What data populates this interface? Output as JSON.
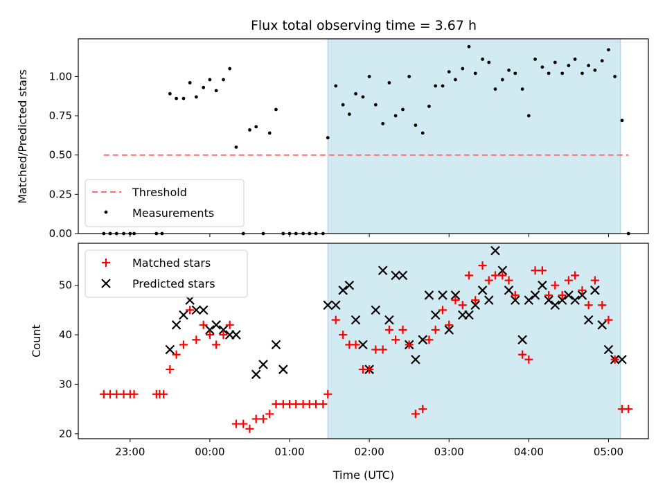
{
  "chart_data": [
    {
      "type": "scatter",
      "panel": "top",
      "title": "Flux total observing time = 3.67 h",
      "xlabel": "",
      "ylabel": "Matched/Predicted stars",
      "xlim": [
        22.35,
        5.5
      ],
      "ylim": [
        0,
        1.24
      ],
      "yticks": [
        0.0,
        0.25,
        0.5,
        0.75,
        1.0
      ],
      "ytick_labels": [
        "0.00",
        "0.25",
        "0.50",
        "0.75",
        "1.00"
      ],
      "shaded_region": [
        1.48,
        5.15
      ],
      "shade_color": "#add8e6",
      "threshold": {
        "label": "Threshold",
        "y": 0.5,
        "x_from": 22.67,
        "x_to": 5.25,
        "color": "#ff6b6b"
      },
      "legend": [
        "Threshold",
        "Measurements"
      ],
      "legend_position": "lower-left",
      "series": [
        {
          "name": "Measurements",
          "color": "#000000",
          "x": [
            22.67,
            22.75,
            22.83,
            22.92,
            23.0,
            23.05,
            23.33,
            23.4,
            23.5,
            23.58,
            23.67,
            23.75,
            23.83,
            23.92,
            24.0,
            24.08,
            24.17,
            24.25,
            24.33,
            24.42,
            24.5,
            24.58,
            24.67,
            24.75,
            24.83,
            24.92,
            25.0,
            25.08,
            25.17,
            25.25,
            25.33,
            25.42,
            25.48,
            25.58,
            25.67,
            25.75,
            25.83,
            25.92,
            26.0,
            26.08,
            26.17,
            26.25,
            26.33,
            26.42,
            26.5,
            26.58,
            26.67,
            26.75,
            26.83,
            26.92,
            27.0,
            27.08,
            27.17,
            27.25,
            27.33,
            27.42,
            27.5,
            27.58,
            27.67,
            27.75,
            27.83,
            27.92,
            28.0,
            28.08,
            28.17,
            28.25,
            28.33,
            28.42,
            28.5,
            28.58,
            28.67,
            28.75,
            28.83,
            28.92,
            29.0,
            29.08,
            29.17,
            29.25
          ],
          "y": [
            0.0,
            0.0,
            0.0,
            0.0,
            0.0,
            0.0,
            0.0,
            0.0,
            0.89,
            0.86,
            0.86,
            0.96,
            0.87,
            0.93,
            0.98,
            0.91,
            0.98,
            1.05,
            0.55,
            0.0,
            0.66,
            0.68,
            0.0,
            0.64,
            0.79,
            0.0,
            0.0,
            0.0,
            0.0,
            0.0,
            0.0,
            0.0,
            0.61,
            0.94,
            0.82,
            0.76,
            0.89,
            0.87,
            1.0,
            0.82,
            0.7,
            0.96,
            0.75,
            0.79,
            1.0,
            0.69,
            0.64,
            0.81,
            0.94,
            0.94,
            1.03,
            0.98,
            1.05,
            1.19,
            1.02,
            1.11,
            1.09,
            0.92,
            0.98,
            1.04,
            1.02,
            0.92,
            0.75,
            1.11,
            1.06,
            1.02,
            1.09,
            1.02,
            1.07,
            1.11,
            1.02,
            1.07,
            1.04,
            1.1,
            1.17,
            1.0,
            0.72,
            0.0
          ]
        }
      ]
    },
    {
      "type": "scatter",
      "panel": "bottom",
      "xlabel": "Time (UTC)",
      "ylabel": "Count",
      "xlim": [
        22.35,
        5.5
      ],
      "ylim": [
        19,
        58.5
      ],
      "yticks": [
        20,
        30,
        40,
        50
      ],
      "xticks": [
        23,
        24,
        25,
        26,
        27,
        28,
        29
      ],
      "xtick_labels": [
        "23:00",
        "00:00",
        "01:00",
        "02:00",
        "03:00",
        "04:00",
        "05:00"
      ],
      "shaded_region": [
        1.48,
        5.15
      ],
      "legend": [
        "Matched stars",
        "Predicted stars"
      ],
      "legend_position": "top-left",
      "series": [
        {
          "name": "Matched stars",
          "marker": "plus",
          "color": "#ff0000",
          "x": [
            22.67,
            22.75,
            22.83,
            22.92,
            23.0,
            23.05,
            23.33,
            23.37,
            23.42,
            23.5,
            23.58,
            23.67,
            23.75,
            23.83,
            23.92,
            24.0,
            24.08,
            24.17,
            24.25,
            24.33,
            24.42,
            24.5,
            24.58,
            24.67,
            24.75,
            24.83,
            24.92,
            25.0,
            25.08,
            25.17,
            25.25,
            25.33,
            25.42,
            25.48,
            25.58,
            25.67,
            25.75,
            25.83,
            25.92,
            26.0,
            26.08,
            26.17,
            26.25,
            26.33,
            26.42,
            26.5,
            26.58,
            26.67,
            26.75,
            26.83,
            26.92,
            27.0,
            27.08,
            27.17,
            27.25,
            27.33,
            27.42,
            27.5,
            27.58,
            27.67,
            27.75,
            27.83,
            27.92,
            28.0,
            28.08,
            28.17,
            28.25,
            28.33,
            28.42,
            28.5,
            28.58,
            28.67,
            28.75,
            28.83,
            28.92,
            29.0,
            29.08,
            29.17,
            29.25
          ],
          "y": [
            28,
            28,
            28,
            28,
            28,
            28,
            28,
            28,
            28,
            33,
            36,
            38,
            45,
            39,
            42,
            40,
            38,
            40,
            42,
            22,
            22,
            21,
            23,
            23,
            24,
            26,
            26,
            26,
            26,
            26,
            26,
            26,
            26,
            28,
            43,
            40,
            38,
            38,
            33,
            33,
            37,
            37,
            41,
            39,
            41,
            38,
            24,
            25,
            39,
            41,
            45,
            42,
            47,
            46,
            52,
            47,
            54,
            51,
            52,
            52,
            51,
            48,
            36,
            35,
            53,
            53,
            48,
            50,
            48,
            51,
            52,
            49,
            46,
            51,
            46,
            43,
            35,
            25,
            25
          ]
        },
        {
          "name": "Predicted stars",
          "marker": "x",
          "color": "#000000",
          "x": [
            23.5,
            23.58,
            23.67,
            23.75,
            23.83,
            23.92,
            24.0,
            24.08,
            24.17,
            24.25,
            24.33,
            24.58,
            24.67,
            24.83,
            24.92,
            25.48,
            25.58,
            25.67,
            25.75,
            25.83,
            25.92,
            26.0,
            26.08,
            26.17,
            26.25,
            26.33,
            26.42,
            26.5,
            26.58,
            26.67,
            26.75,
            26.83,
            26.92,
            27.0,
            27.08,
            27.17,
            27.25,
            27.33,
            27.42,
            27.5,
            27.58,
            27.67,
            27.75,
            27.83,
            27.92,
            28.0,
            28.08,
            28.17,
            28.25,
            28.33,
            28.42,
            28.5,
            28.58,
            28.67,
            28.75,
            28.83,
            28.92,
            29.0,
            29.08,
            29.17
          ],
          "y": [
            37,
            42,
            44,
            47,
            45,
            45,
            41,
            42,
            41,
            40,
            40,
            32,
            34,
            38,
            33,
            46,
            46,
            49,
            50,
            43,
            38,
            33,
            45,
            53,
            43,
            52,
            52,
            38,
            35,
            39,
            48,
            44,
            48,
            41,
            48,
            44,
            44,
            46,
            49,
            47,
            57,
            53,
            49,
            47,
            39,
            47,
            48,
            50,
            47,
            46,
            47,
            48,
            47,
            48,
            43,
            49,
            42,
            37,
            35,
            35
          ]
        }
      ]
    }
  ]
}
